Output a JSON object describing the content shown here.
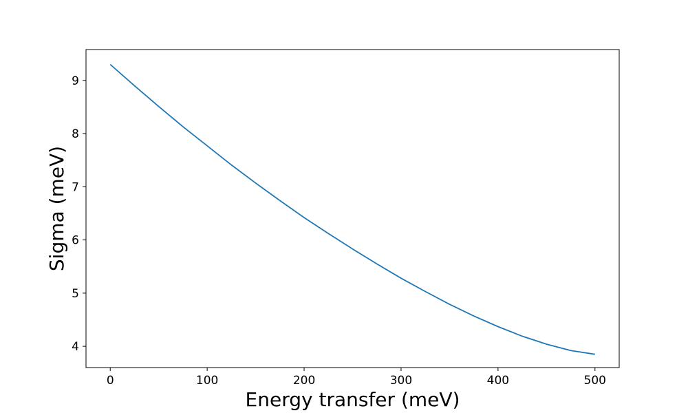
{
  "chart_data": {
    "type": "line",
    "xlabel": "Energy transfer (meV)",
    "ylabel": "Sigma (meV)",
    "xlim": [
      -25,
      525
    ],
    "ylim": [
      3.6,
      9.58
    ],
    "xticks": [
      0,
      100,
      200,
      300,
      400,
      500
    ],
    "yticks": [
      4,
      5,
      6,
      7,
      8,
      9
    ],
    "xtick_labels": [
      "0",
      "100",
      "200",
      "300",
      "400",
      "500"
    ],
    "ytick_labels": [
      "4",
      "5",
      "6",
      "7",
      "8",
      "9"
    ],
    "grid": false,
    "line_color": "#1f77b4",
    "series": [
      {
        "x": [
          0,
          25,
          50,
          75,
          100,
          125,
          150,
          175,
          200,
          225,
          250,
          275,
          300,
          325,
          350,
          375,
          400,
          425,
          450,
          475,
          500
        ],
        "y": [
          9.3,
          8.9,
          8.51,
          8.13,
          7.77,
          7.41,
          7.07,
          6.74,
          6.42,
          6.12,
          5.83,
          5.55,
          5.28,
          5.03,
          4.79,
          4.57,
          4.37,
          4.19,
          4.04,
          3.92,
          3.85
        ]
      }
    ]
  }
}
